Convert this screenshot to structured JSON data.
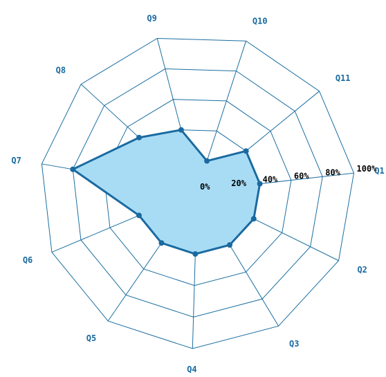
{
  "chart_data": {
    "type": "radar",
    "axes": [
      "Q1",
      "Q2",
      "Q3",
      "Q4",
      "Q5",
      "Q6",
      "Q7",
      "Q8",
      "Q9",
      "Q10",
      "Q11"
    ],
    "tick_labels": [
      "0%",
      "20%",
      "40%",
      "60%",
      "80%",
      "100%"
    ],
    "range": [
      0,
      100
    ],
    "grid": true,
    "series": [
      {
        "values": [
          40,
          40,
          40,
          40,
          40,
          40,
          80,
          50,
          40,
          20,
          40
        ]
      }
    ]
  },
  "colors": {
    "grid": "#1a6ea0",
    "axis_label": "#1a6aa0",
    "tick_label": "#000000",
    "series_fill": "#a8dcf5",
    "series_line": "#1a6aa0"
  }
}
